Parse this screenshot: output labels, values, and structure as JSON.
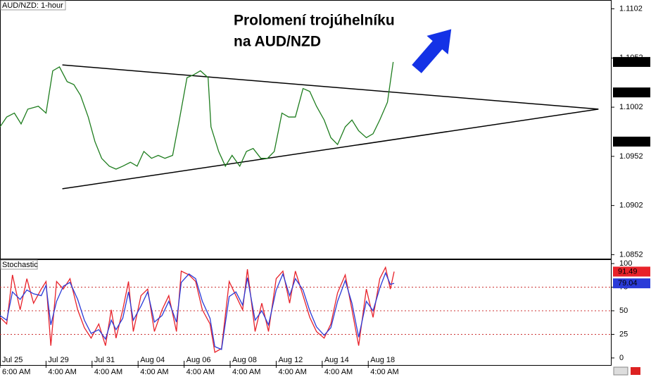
{
  "chart_data": [
    {
      "type": "line",
      "title": "AUD/NZD: 1-hour",
      "annotation": [
        "Prolomení trojúhelníku",
        "na AUD/NZD"
      ],
      "xlim": [
        0,
        637
      ],
      "ylim": [
        1.0848,
        1.1111
      ],
      "yticks": [
        1.0852,
        1.0902,
        1.0952,
        1.1002,
        1.1052,
        1.1102
      ],
      "x": [
        0,
        7,
        15,
        22,
        29,
        40,
        48,
        55,
        62,
        70,
        77,
        84,
        92,
        99,
        106,
        114,
        121,
        128,
        136,
        143,
        150,
        158,
        165,
        172,
        180,
        187,
        195,
        202,
        209,
        217,
        220,
        228,
        235,
        242,
        250,
        257,
        264,
        272,
        279,
        286,
        294,
        301,
        308,
        316,
        323,
        330,
        338,
        345,
        352,
        360,
        367,
        374,
        382,
        389,
        396,
        404,
        410
      ],
      "series": [
        {
          "color": "#1e7d1e",
          "values": [
            1.0982,
            1.0992,
            1.0996,
            1.0985,
            1.1,
            1.1003,
            1.0996,
            1.1039,
            1.1043,
            1.1028,
            1.1025,
            1.1014,
            1.0992,
            1.0967,
            1.095,
            1.0942,
            1.0939,
            1.0942,
            1.0946,
            1.0942,
            1.0957,
            1.095,
            1.0953,
            1.095,
            1.0953,
            1.0989,
            1.1032,
            1.1035,
            1.1039,
            1.1032,
            1.0982,
            1.0957,
            1.0942,
            1.0953,
            1.0942,
            1.0957,
            1.096,
            1.095,
            1.095,
            1.0957,
            1.0996,
            1.0992,
            1.0992,
            1.1021,
            1.1018,
            1.1003,
            1.0989,
            1.0971,
            1.0964,
            1.0982,
            1.0989,
            1.0978,
            1.0971,
            1.0975,
            1.0989,
            1.1007,
            1.1048
          ]
        }
      ],
      "trendlines": [
        {
          "x": [
            65,
            624
          ],
          "values": [
            1.1045,
            1.1
          ]
        },
        {
          "x": [
            65,
            624
          ],
          "values": [
            1.0919,
            1.1
          ]
        }
      ],
      "price_markers": [
        1.1048,
        1.1017,
        1.0967
      ]
    },
    {
      "type": "line",
      "title": "Stochastic",
      "xlim": [
        0,
        637
      ],
      "ylim": [
        -7.5,
        104.5
      ],
      "yticks": [
        0,
        25,
        50,
        75,
        100
      ],
      "levels": [
        25,
        50,
        75
      ],
      "xticks": [
        {
          "value": 0,
          "label": "Jul 25"
        },
        {
          "value": 48,
          "label": "Jul 29"
        },
        {
          "value": 96,
          "label": "Jul 31"
        },
        {
          "value": 144,
          "label": "Aug 04"
        },
        {
          "value": 192,
          "label": "Aug 06"
        },
        {
          "value": 240,
          "label": "Aug 08"
        },
        {
          "value": 288,
          "label": "Aug 12"
        },
        {
          "value": 336,
          "label": "Aug 14"
        },
        {
          "value": 384,
          "label": "Aug 18"
        }
      ],
      "xtick_sublabels": [
        "6:00 AM",
        "4:00 AM",
        "4:00 AM",
        "4:00 AM",
        "4:00 AM",
        "4:00 AM",
        "4:00 AM",
        "4:00 AM",
        "4:00 AM"
      ],
      "x": [
        0,
        7,
        13,
        21,
        28,
        35,
        43,
        48,
        53,
        59,
        66,
        73,
        81,
        88,
        95,
        103,
        110,
        116,
        121,
        128,
        134,
        139,
        147,
        154,
        161,
        169,
        176,
        184,
        189,
        197,
        204,
        211,
        219,
        224,
        231,
        239,
        246,
        253,
        258,
        266,
        273,
        280,
        288,
        295,
        302,
        308,
        316,
        323,
        330,
        338,
        345,
        352,
        360,
        367,
        374,
        382,
        389,
        396,
        402,
        407,
        411
      ],
      "series": [
        {
          "color": "#e8222a",
          "values": [
            43,
            36,
            88,
            51,
            84,
            58,
            73,
            81,
            13,
            81,
            73,
            84,
            51,
            32,
            21,
            36,
            13,
            51,
            21,
            51,
            81,
            28,
            66,
            73,
            28,
            51,
            66,
            28,
            92,
            88,
            81,
            51,
            36,
            6,
            10,
            81,
            66,
            51,
            94,
            28,
            58,
            28,
            84,
            92,
            58,
            92,
            66,
            43,
            28,
            21,
            36,
            69,
            88,
            51,
            13,
            73,
            43,
            84,
            96,
            73,
            91.49
          ]
        },
        {
          "color": "#2a3bd8",
          "values": [
            45,
            40,
            70,
            62,
            72,
            68,
            66,
            77,
            35,
            60,
            76,
            80,
            62,
            40,
            26,
            30,
            20,
            40,
            30,
            42,
            70,
            40,
            55,
            70,
            38,
            45,
            60,
            38,
            80,
            89,
            84,
            60,
            42,
            12,
            9,
            65,
            70,
            56,
            85,
            40,
            50,
            35,
            72,
            89,
            66,
            84,
            72,
            50,
            33,
            24,
            32,
            60,
            82,
            58,
            22,
            60,
            50,
            74,
            90,
            78,
            79.04
          ]
        }
      ]
    }
  ]
}
